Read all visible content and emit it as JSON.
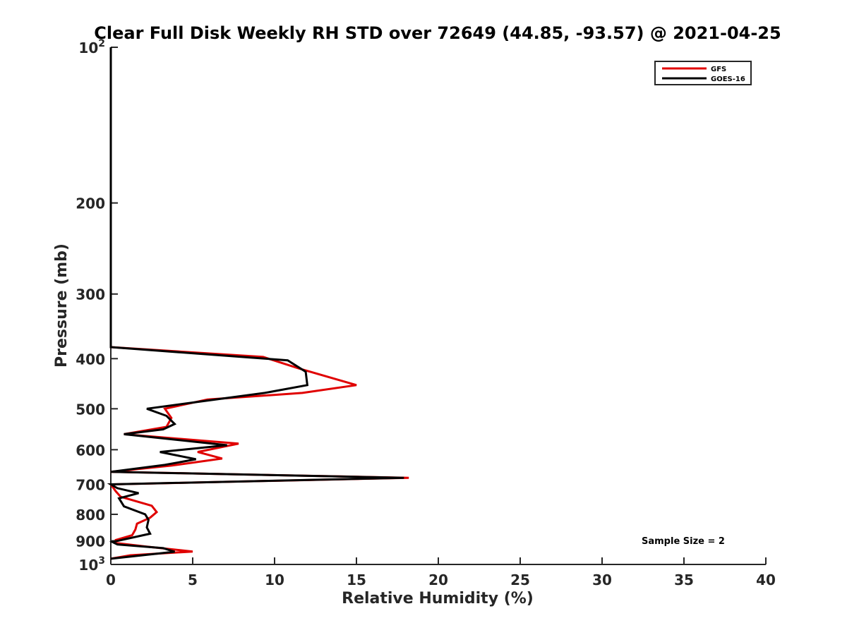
{
  "chart_data": {
    "type": "line",
    "title": "Clear Full Disk Weekly RH STD over 72649 (44.85, -93.57) @ 2021-04-25",
    "xlabel": "Relative Humidity (%)",
    "ylabel": "Pressure (mb)",
    "xlim": [
      0,
      40
    ],
    "ylim": [
      100,
      1000
    ],
    "y_scale": "log",
    "y_reversed": true,
    "x_ticks": [
      0,
      5,
      10,
      15,
      20,
      25,
      30,
      35,
      40
    ],
    "x_tick_labels": [
      "0",
      "5",
      "10",
      "15",
      "20",
      "25",
      "30",
      "35",
      "40"
    ],
    "y_ticks": [
      100,
      200,
      300,
      400,
      500,
      600,
      700,
      800,
      900,
      1000
    ],
    "y_tick_labels": [
      {
        "base": "10",
        "exp": "2"
      },
      {
        "base": "200",
        "exp": ""
      },
      {
        "base": "300",
        "exp": ""
      },
      {
        "base": "400",
        "exp": ""
      },
      {
        "base": "500",
        "exp": ""
      },
      {
        "base": "600",
        "exp": ""
      },
      {
        "base": "700",
        "exp": ""
      },
      {
        "base": "800",
        "exp": ""
      },
      {
        "base": "900",
        "exp": ""
      },
      {
        "base": "10",
        "exp": "3"
      }
    ],
    "grid": false,
    "legend_position": "top-right",
    "annotation": "Sample Size = 2",
    "series": [
      {
        "name": "GFS",
        "color": "#e00000",
        "points": [
          [
            0,
            100
          ],
          [
            0,
            380
          ],
          [
            9.3,
            397
          ],
          [
            11.5,
            418
          ],
          [
            15,
            450
          ],
          [
            11.7,
            466
          ],
          [
            5.9,
            480
          ],
          [
            3.3,
            500
          ],
          [
            3.7,
            521
          ],
          [
            3.4,
            542
          ],
          [
            0.8,
            560
          ],
          [
            7.8,
            584
          ],
          [
            5.3,
            606
          ],
          [
            6.8,
            624
          ],
          [
            3.7,
            644
          ],
          [
            0,
            662
          ],
          [
            18.2,
            680
          ],
          [
            0,
            700
          ],
          [
            0.3,
            722
          ],
          [
            0.6,
            740
          ],
          [
            2.5,
            770
          ],
          [
            2.8,
            792
          ],
          [
            2.4,
            812
          ],
          [
            1.6,
            834
          ],
          [
            1.5,
            856
          ],
          [
            1.3,
            878
          ],
          [
            0.3,
            897
          ],
          [
            0.3,
            909
          ],
          [
            2.2,
            924
          ],
          [
            5,
            944
          ],
          [
            1.2,
            960
          ],
          [
            0,
            975
          ]
        ]
      },
      {
        "name": "GOES-16",
        "color": "#000000",
        "points": [
          [
            0,
            100
          ],
          [
            0,
            380
          ],
          [
            10.8,
            403
          ],
          [
            11.9,
            424
          ],
          [
            12,
            450
          ],
          [
            9.4,
            466
          ],
          [
            5.5,
            484
          ],
          [
            2.2,
            500
          ],
          [
            3.4,
            516
          ],
          [
            3.9,
            535
          ],
          [
            3.2,
            548
          ],
          [
            0.8,
            560
          ],
          [
            7.1,
            588
          ],
          [
            3,
            606
          ],
          [
            5.2,
            626
          ],
          [
            3.3,
            642
          ],
          [
            0,
            662
          ],
          [
            17.9,
            680
          ],
          [
            0,
            700
          ],
          [
            0.4,
            712
          ],
          [
            1.7,
            728
          ],
          [
            0.5,
            745
          ],
          [
            0.8,
            772
          ],
          [
            2.1,
            800
          ],
          [
            2.3,
            820
          ],
          [
            2.2,
            848
          ],
          [
            2.4,
            872
          ],
          [
            0.1,
            905
          ],
          [
            0.4,
            915
          ],
          [
            3.2,
            930
          ],
          [
            3.9,
            945
          ],
          [
            0,
            975
          ]
        ]
      }
    ]
  }
}
